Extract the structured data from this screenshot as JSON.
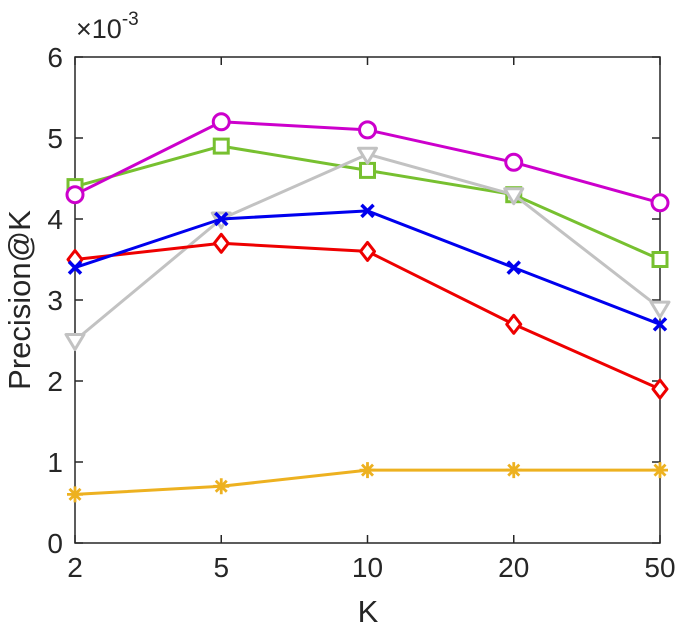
{
  "figure": {
    "background": "#ffffff",
    "axis_color": "#262626"
  },
  "chart_data": {
    "type": "line",
    "title": "",
    "xlabel": "K",
    "ylabel": "Precision@K",
    "y_exponent": {
      "base": "×10",
      "sup": "-3"
    },
    "values_unit": "1e-3",
    "x": [
      2,
      5,
      10,
      20,
      50
    ],
    "x_ticks": [
      "2",
      "5",
      "10",
      "20",
      "50"
    ],
    "y_ticks": [
      "0",
      "1",
      "2",
      "3",
      "4",
      "5",
      "6"
    ],
    "ylim": [
      0,
      6
    ],
    "grid": false,
    "legend": "none",
    "axis_color": "#262626",
    "series": [
      {
        "name": "green-square",
        "marker": "square",
        "color": "#77C030",
        "values": [
          4.4,
          4.9,
          4.6,
          4.3,
          3.5
        ]
      },
      {
        "name": "magenta-circle",
        "marker": "circle",
        "color": "#CC00CC",
        "values": [
          4.3,
          5.2,
          5.1,
          4.7,
          4.2
        ]
      },
      {
        "name": "gray-triangle",
        "marker": "triangle-down",
        "color": "#C2C2C2",
        "values": [
          2.5,
          4.0,
          4.8,
          4.3,
          2.9
        ]
      },
      {
        "name": "red-diamond",
        "marker": "diamond",
        "color": "#EE0000",
        "values": [
          3.5,
          3.7,
          3.6,
          2.7,
          1.9
        ]
      },
      {
        "name": "blue-x",
        "marker": "x",
        "color": "#0000EE",
        "values": [
          3.4,
          4.0,
          4.1,
          3.4,
          2.7
        ]
      },
      {
        "name": "yellow-asterisk",
        "marker": "asterisk",
        "color": "#EDB120",
        "values": [
          0.6,
          0.7,
          0.9,
          0.9,
          0.9
        ]
      }
    ]
  }
}
